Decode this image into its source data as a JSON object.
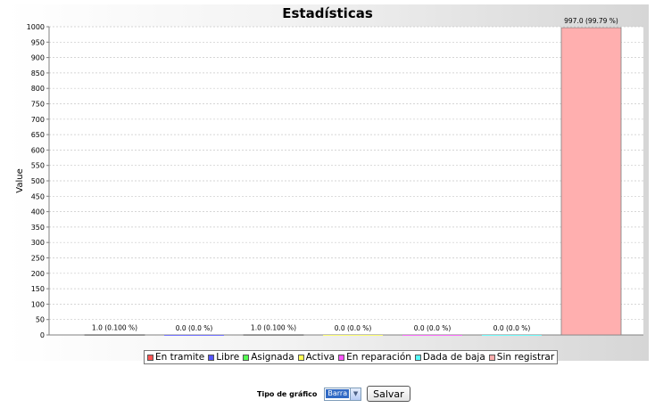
{
  "chart_data": {
    "type": "bar",
    "title": "Estadísticas",
    "xlabel": "",
    "ylabel": "Value",
    "ylim": [
      0,
      1000
    ],
    "ytick_step": 50,
    "grid": true,
    "legend_position": "bottom",
    "series": [
      {
        "name": "En tramite",
        "value": 1.0,
        "label": "1.0 (0.100 %)",
        "color": "#ff5555"
      },
      {
        "name": "Libre",
        "value": 0.0,
        "label": "0.0 (0.0 %)",
        "color": "#5555ff"
      },
      {
        "name": "Asignada",
        "value": 1.0,
        "label": "1.0 (0.100 %)",
        "color": "#55ff55"
      },
      {
        "name": "Activa",
        "value": 0.0,
        "label": "0.0 (0.0 %)",
        "color": "#ffff55"
      },
      {
        "name": "En reparación",
        "value": 0.0,
        "label": "0.0 (0.0 %)",
        "color": "#ff55ff"
      },
      {
        "name": "Dada de baja",
        "value": 0.0,
        "label": "0.0 (0.0 %)",
        "color": "#55ffff"
      },
      {
        "name": "Sin registrar",
        "value": 997.0,
        "label": "997.0 (99.79 %)",
        "color": "#ffafaf"
      }
    ]
  },
  "controls": {
    "type_label": "Tipo de gráfico",
    "type_value": "Barra",
    "save_label": "Salvar"
  }
}
